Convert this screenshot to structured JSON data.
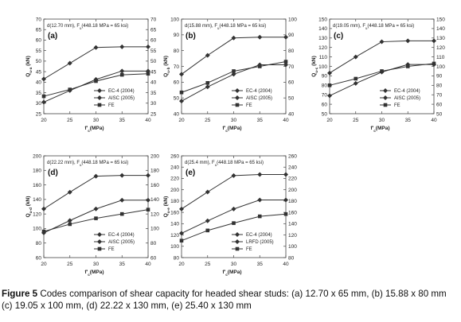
{
  "caption": {
    "label": "Figure 5",
    "text": " Codes comparison of shear capacity for headed shear studs: (a) 12.70 x 65 mm, (b) 15.88 x 80 mm (c) 19.05 x 100 mm, (d) 22.22 x 130 mm, (e) 25.40 x 130 mm"
  },
  "chart_data": [
    {
      "type": "line",
      "panel": "(a)",
      "annotation": "d(12.70 mm), F_u(448.18 MPa = 65 ksi)",
      "xlabel": "f'c(MPa)",
      "ylabel": "Q_u-a (kN)",
      "x": [
        20,
        25,
        30,
        35,
        40
      ],
      "xlim": [
        20,
        40
      ],
      "ylim": [
        25,
        70
      ],
      "yticks": [
        25,
        30,
        35,
        40,
        45,
        50,
        55,
        60,
        65,
        70
      ],
      "legend_position": "lower-right",
      "series": [
        {
          "name": "EC-4 (2004)",
          "marker": "diamond",
          "values": [
            41.5,
            49,
            56.5,
            56.8,
            56.8
          ]
        },
        {
          "name": "AISC (2005)",
          "marker": "diamond",
          "values": [
            30.5,
            36,
            41.3,
            45.3,
            45.3
          ]
        },
        {
          "name": "FE",
          "marker": "square",
          "values": [
            33.3,
            36.5,
            40.5,
            43.5,
            44
          ]
        }
      ]
    },
    {
      "type": "line",
      "panel": "(b)",
      "annotation": "d(15.88 mm), F_u(448.18 MPa = 65 ksi)",
      "xlabel": "f'c(MPa)",
      "ylabel": "Q_u-b (kN)",
      "x": [
        20,
        25,
        30,
        35,
        40
      ],
      "xlim": [
        20,
        40
      ],
      "ylim": [
        40,
        100
      ],
      "yticks": [
        40,
        50,
        60,
        70,
        80,
        90,
        100
      ],
      "legend_position": "lower-right",
      "series": [
        {
          "name": "EC-4 (2004)",
          "marker": "diamond",
          "values": [
            65,
            77,
            88,
            88.5,
            88.5
          ]
        },
        {
          "name": "AISC (2005)",
          "marker": "diamond",
          "values": [
            48,
            57,
            65,
            71,
            71
          ]
        },
        {
          "name": "FE",
          "marker": "square",
          "values": [
            53.5,
            59.5,
            67,
            70,
            73
          ]
        }
      ]
    },
    {
      "type": "line",
      "panel": "(c)",
      "annotation": "d(19.05 mm), F_u(448.18 MPa = 65 ksi)",
      "xlabel": "f'c(MPa)",
      "ylabel": "Q_u-c (kN)",
      "x": [
        20,
        25,
        30,
        35,
        40
      ],
      "xlim": [
        20,
        40
      ],
      "ylim": [
        50,
        150
      ],
      "yticks": [
        50,
        60,
        70,
        80,
        90,
        100,
        110,
        120,
        130,
        140,
        150
      ],
      "legend_position": "lower-right",
      "series": [
        {
          "name": "EC-4 (2004)",
          "marker": "diamond",
          "values": [
            93,
            110,
            126,
            127,
            127
          ]
        },
        {
          "name": "AISC (2005)",
          "marker": "diamond",
          "values": [
            69,
            82,
            94,
            102,
            102
          ]
        },
        {
          "name": "FE",
          "marker": "square",
          "values": [
            80,
            87,
            95,
            100,
            103
          ]
        }
      ]
    },
    {
      "type": "line",
      "panel": "(d)",
      "annotation": "d(22.22 mm), F_u(448.18 MPa = 65 ksi)",
      "xlabel": "f'c(MPa)",
      "ylabel": "Q_u-d (kN)",
      "x": [
        20,
        25,
        30,
        35,
        40
      ],
      "xlim": [
        20,
        40
      ],
      "ylim": [
        60,
        200
      ],
      "yticks": [
        60,
        80,
        100,
        120,
        140,
        160,
        180,
        200
      ],
      "legend_position": "lower-right",
      "series": [
        {
          "name": "EC-4 (2004)",
          "marker": "diamond",
          "values": [
            127,
            150,
            172,
            173,
            173
          ]
        },
        {
          "name": "AISC (2005)",
          "marker": "diamond",
          "values": [
            94,
            111,
            127,
            139,
            139
          ]
        },
        {
          "name": "FE",
          "marker": "square",
          "values": [
            96,
            106,
            114,
            120,
            126
          ]
        }
      ]
    },
    {
      "type": "line",
      "panel": "(e)",
      "annotation": "d(25.4 mm), F_u(448.18 MPa = 65 ksi)",
      "xlabel": "f'c(MPa)",
      "ylabel": "Q_u-e (kN)",
      "x": [
        20,
        25,
        30,
        35,
        40
      ],
      "xlim": [
        20,
        40
      ],
      "ylim": [
        80,
        260
      ],
      "yticks": [
        80,
        100,
        120,
        140,
        160,
        180,
        200,
        220,
        240,
        260
      ],
      "legend_position": "lower-right",
      "series": [
        {
          "name": "EC-4 (2004)",
          "marker": "diamond",
          "values": [
            166,
            196,
            225,
            227,
            227
          ]
        },
        {
          "name": "LRFD (2005)",
          "marker": "diamond",
          "values": [
            123,
            145,
            166,
            182,
            182
          ]
        },
        {
          "name": "FE",
          "marker": "square",
          "values": [
            110,
            128,
            141,
            153,
            157
          ]
        }
      ]
    }
  ]
}
